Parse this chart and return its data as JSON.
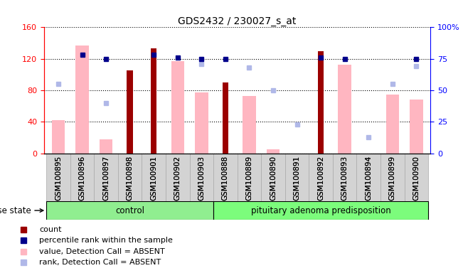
{
  "title": "GDS2432 / 230027_s_at",
  "samples": [
    "GSM100895",
    "GSM100896",
    "GSM100897",
    "GSM100898",
    "GSM100901",
    "GSM100902",
    "GSM100903",
    "GSM100888",
    "GSM100889",
    "GSM100890",
    "GSM100891",
    "GSM100892",
    "GSM100893",
    "GSM100894",
    "GSM100899",
    "GSM100900"
  ],
  "n_control": 7,
  "n_pit": 9,
  "count": [
    null,
    null,
    null,
    105,
    133,
    null,
    null,
    90,
    null,
    null,
    null,
    130,
    null,
    null,
    null,
    null
  ],
  "percentile_rank": [
    null,
    78,
    75,
    null,
    78,
    76,
    75,
    75,
    null,
    null,
    null,
    76,
    75,
    null,
    null,
    75
  ],
  "value_absent": [
    42,
    137,
    18,
    null,
    null,
    117,
    77,
    null,
    73,
    5,
    null,
    null,
    113,
    null,
    75,
    68
  ],
  "rank_absent": [
    55,
    null,
    40,
    null,
    null,
    null,
    71,
    null,
    68,
    50,
    23,
    null,
    null,
    13,
    55,
    69
  ],
  "ylim_left": [
    0,
    160
  ],
  "ylim_right": [
    0,
    100
  ],
  "yticks_left": [
    0,
    40,
    80,
    120,
    160
  ],
  "yticks_right": [
    0,
    25,
    50,
    75,
    100
  ],
  "ytick_labels_right": [
    "0",
    "25",
    "50",
    "75",
    "100%"
  ],
  "color_count": "#9b0000",
  "color_percentile": "#00008b",
  "color_value_absent": "#ffb6c1",
  "color_rank_absent": "#b0b8e8",
  "color_control": "#90ee90",
  "color_pit": "#7cfc7c",
  "color_xtick_bg": "#d3d3d3",
  "legend_items": [
    {
      "label": "count",
      "color": "#9b0000"
    },
    {
      "label": "percentile rank within the sample",
      "color": "#00008b"
    },
    {
      "label": "value, Detection Call = ABSENT",
      "color": "#ffb6c1"
    },
    {
      "label": "rank, Detection Call = ABSENT",
      "color": "#b0b8e8"
    }
  ]
}
